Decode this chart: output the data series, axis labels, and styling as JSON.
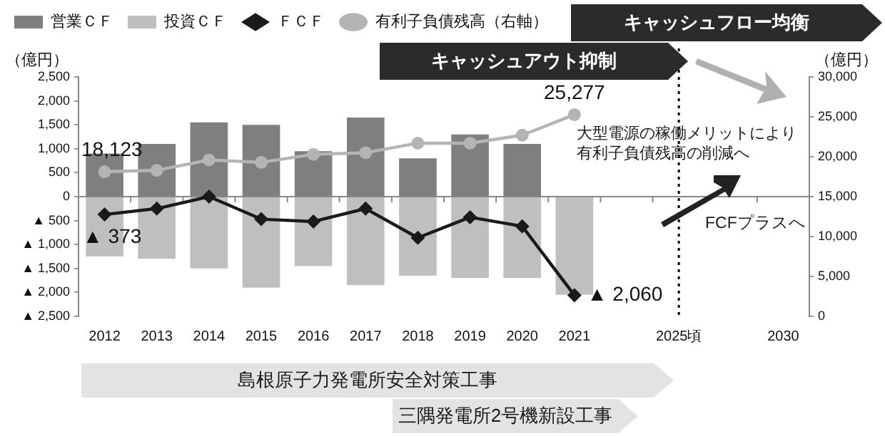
{
  "chart_data": {
    "type": "bar",
    "categories": [
      "2012",
      "2013",
      "2014",
      "2015",
      "2016",
      "2017",
      "2018",
      "2019",
      "2020",
      "2021",
      null,
      "2025頃",
      null,
      "2030"
    ],
    "ylabel": "（億円）",
    "y2label": "（億円）",
    "ylim": [
      -2500,
      2500
    ],
    "yticks": [
      {
        "value": -2500,
        "label": "▲ 2,500"
      },
      {
        "value": -2000,
        "label": "▲ 2,000"
      },
      {
        "value": -1500,
        "label": "▲ 1,500"
      },
      {
        "value": -1000,
        "label": "▲ 1,000"
      },
      {
        "value": -500,
        "label": "▲ 500"
      },
      0,
      500,
      {
        "value": 1000,
        "label": "1,000"
      },
      {
        "value": 1500,
        "label": "1,500"
      },
      {
        "value": 2000,
        "label": "2,000"
      },
      {
        "value": 2500,
        "label": "2,500"
      }
    ],
    "y2lim": [
      0,
      30000
    ],
    "y2ticks": [
      0,
      {
        "value": 5000,
        "label": "5,000"
      },
      {
        "value": 10000,
        "label": "10,000"
      },
      {
        "value": 15000,
        "label": "15,000"
      },
      {
        "value": 20000,
        "label": "20,000"
      },
      {
        "value": 25000,
        "label": "25,000"
      },
      {
        "value": 30000,
        "label": "30,000"
      }
    ],
    "stacked": true,
    "grid": false,
    "legend": "top left",
    "series": [
      {
        "name": "営業ＣＦ",
        "color": "#7f7f7f",
        "values": [
          900,
          1100,
          1550,
          1500,
          950,
          1650,
          800,
          1300,
          1100,
          null,
          null,
          null,
          null,
          null
        ]
      },
      {
        "name": "投資ＣＦ",
        "color": "#bfbfbf",
        "values": [
          -1250,
          -1300,
          -1500,
          -1900,
          -1450,
          -1850,
          -1650,
          -1700,
          -1700,
          -2050,
          null,
          null,
          null,
          null
        ]
      },
      {
        "name": "ＦＣＦ",
        "type": "line",
        "color": "#1a1a1a",
        "marker": "diamond",
        "values": [
          -373,
          -250,
          0,
          -470,
          -520,
          -250,
          -860,
          -430,
          -620,
          -2060,
          null,
          null,
          null,
          null
        ]
      },
      {
        "name": "有利子負債残高（右軸）",
        "type": "line",
        "axis": "y2",
        "color": "#b4b4b4",
        "marker": "circle",
        "values": [
          18123,
          18300,
          19600,
          19300,
          20300,
          20500,
          21700,
          21700,
          22700,
          25277,
          null,
          null,
          null,
          null
        ],
        "value_labels": [
          "18,123",
          null,
          null,
          null,
          null,
          null,
          null,
          null,
          null,
          "25,277",
          null,
          null,
          null,
          null
        ]
      }
    ],
    "ref_lines": [
      {
        "axis": "x",
        "value": "2025頃",
        "line_style": "dotted",
        "color": "#000000"
      }
    ],
    "annotations": [
      "キャッシュフロー均衡",
      "キャッシュアウト抑制",
      "大型電源の稼働メリットにより有利子負債残高の削減へ",
      "FCFプラスへ",
      "島根原子力発電所安全対策工事",
      "三隅発電所2号機新設工事",
      {
        "text": "▲ 373",
        "x": "2012",
        "y": -373
      },
      {
        "text": "▲ 2,060",
        "x": "2021",
        "y": -2060
      }
    ]
  }
}
